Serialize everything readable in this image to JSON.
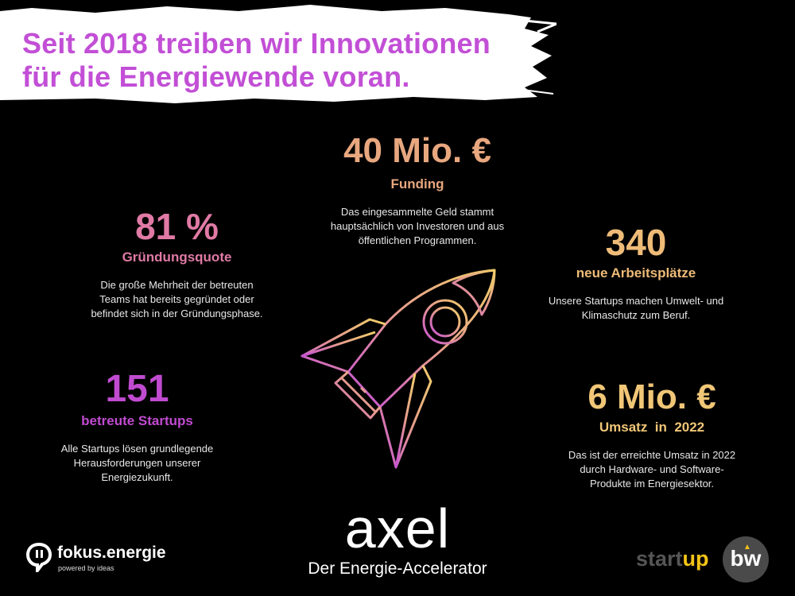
{
  "headline": {
    "line1": "Seit 2018 treiben wir Innovationen",
    "line2": "für die Energiewende voran."
  },
  "stats": {
    "funding": {
      "value": "40 Mio. €",
      "label": "Funding",
      "desc": [
        "Das eingesammelte Geld stammt",
        "hauptsächlich von Investoren und aus",
        "öffentlichen Programmen."
      ]
    },
    "quote": {
      "value": "81 %",
      "label": "Gründungsquote",
      "desc": [
        "Die große Mehrheit der betreuten",
        "Teams hat bereits gegründet oder",
        "befindet sich in der Gründungsphase."
      ]
    },
    "jobs": {
      "value": "340",
      "label": "neue Arbeitsplätze",
      "desc": [
        "Unsere Startups machen Umwelt- und",
        "Klimaschutz zum Beruf."
      ]
    },
    "startups": {
      "value": "151",
      "label": "betreute Startups",
      "desc": [
        "Alle Startups lösen grundlegende",
        "Herausforderungen unserer",
        "Energiezukunft."
      ]
    },
    "revenue": {
      "value": "6 Mio. €",
      "label": "Umsatz  in  2022",
      "desc": [
        "Das ist der erreichte Umsatz in 2022",
        "durch Hardware- und Software-",
        "Produkte im Energiesektor."
      ]
    }
  },
  "brand": {
    "axel": "axel",
    "axel_sub": "Der Energie-Accelerator",
    "fokus_name": "fokus.energie",
    "fokus_tag": "powered by ideas",
    "startup_a": "start",
    "startup_b": "up",
    "bw": "bw"
  },
  "icons": {
    "rocket": "rocket-icon",
    "fokus": "speech-bubble-icon"
  },
  "colors": {
    "background": "#000000",
    "headline": "#c24fd6",
    "funding": "#e8a77f",
    "quote": "#e07aa5",
    "jobs": "#eebc78",
    "startups": "#c04bd0",
    "revenue": "#f0c677",
    "startup_yellow": "#f3c317"
  }
}
